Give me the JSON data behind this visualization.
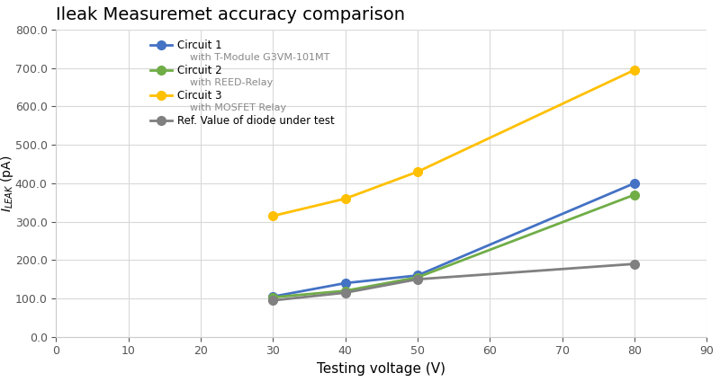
{
  "title": "Ileak Measuremet accuracy comparison",
  "xlabel": "Testing voltage (V)",
  "ylabel": "I_LEAK (pA)",
  "x_values": [
    30,
    40,
    50,
    80
  ],
  "circuit1": [
    105,
    140,
    160,
    400
  ],
  "circuit2": [
    103,
    120,
    155,
    370
  ],
  "circuit3": [
    315,
    360,
    430,
    695
  ],
  "ref": [
    95,
    115,
    150,
    190
  ],
  "circuit1_color": "#4472C4",
  "circuit2_color": "#70AD47",
  "circuit3_color": "#FFC000",
  "ref_color": "#808080",
  "xlim": [
    0,
    90
  ],
  "ylim": [
    0,
    800
  ],
  "yticks": [
    0.0,
    100.0,
    200.0,
    300.0,
    400.0,
    500.0,
    600.0,
    700.0,
    800.0
  ],
  "xticks": [
    0,
    10,
    20,
    30,
    40,
    50,
    60,
    70,
    80,
    90
  ],
  "bg_color": "#FFFFFF",
  "plot_bg_color": "#FFFFFF",
  "grid_color": "#D9D9D9",
  "marker_size": 7,
  "line_width": 2.0
}
